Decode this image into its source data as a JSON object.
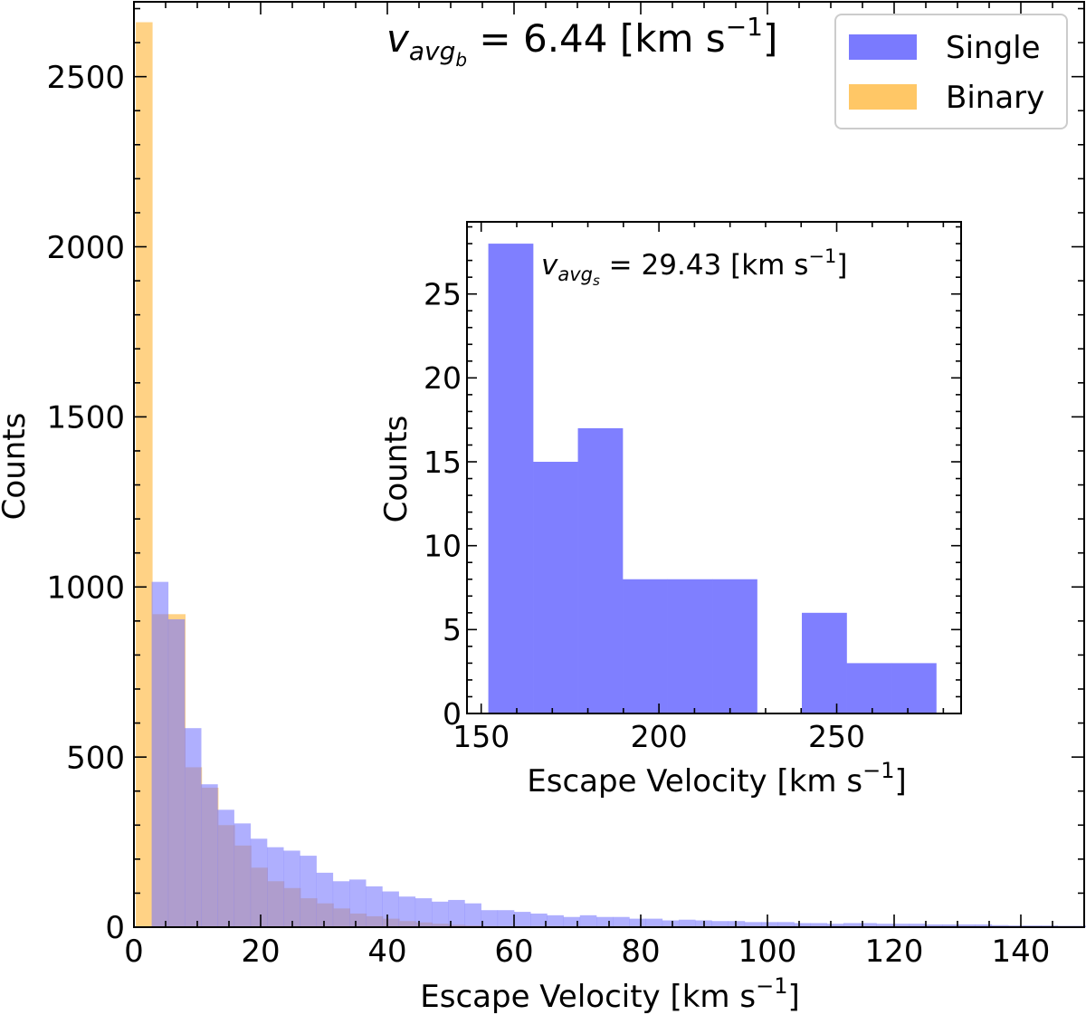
{
  "chart_data": [
    {
      "type": "bar",
      "role": "main",
      "xlabel_main": "Escape Velocity [km s",
      "xlabel_sup": "−1",
      "xlabel_tail": "]",
      "ylabel": "Counts",
      "xlim": [
        0,
        150
      ],
      "ylim": [
        0,
        2720
      ],
      "xticks": [
        0,
        20,
        40,
        60,
        80,
        100,
        120,
        140
      ],
      "yticks": [
        0,
        500,
        1000,
        1500,
        2000,
        2500
      ],
      "annotation": {
        "var": "v",
        "sub": "avg",
        "subsub": "b",
        "text": " = 6.44 [km s",
        "sup": "−1",
        "tail": "]"
      },
      "legend": {
        "position": "top-right",
        "entries": [
          "Single",
          "Binary"
        ]
      },
      "series": [
        {
          "name": "Single",
          "color": "#7a7afe",
          "bin_start": 2.8,
          "bin_width": 2.6,
          "values": [
            1015,
            905,
            585,
            420,
            345,
            305,
            260,
            235,
            225,
            210,
            160,
            135,
            140,
            120,
            105,
            90,
            85,
            75,
            80,
            70,
            50,
            50,
            45,
            40,
            35,
            30,
            35,
            30,
            30,
            25,
            25,
            20,
            22,
            20,
            18,
            18,
            15,
            15,
            15,
            12,
            12,
            10,
            12,
            12,
            10,
            10,
            10,
            8,
            8,
            8,
            8,
            6,
            5,
            5,
            5,
            4,
            4
          ]
        },
        {
          "name": "Binary",
          "color": "#ffc766",
          "bin_start": 0.3,
          "bin_width": 2.6,
          "values": [
            2660,
            920,
            920,
            470,
            410,
            300,
            240,
            175,
            135,
            115,
            85,
            70,
            55,
            40,
            32,
            25,
            18,
            14,
            10,
            7,
            5,
            3
          ]
        }
      ]
    },
    {
      "type": "bar",
      "role": "inset",
      "xlabel_main": "Escape Velocity [km s",
      "xlabel_sup": "−1",
      "xlabel_tail": "]",
      "ylabel": "Counts",
      "xlim": [
        146,
        285
      ],
      "ylim": [
        0,
        29.3
      ],
      "xticks": [
        150,
        200,
        250
      ],
      "yticks": [
        0,
        5,
        10,
        15,
        20,
        25
      ],
      "annotation": {
        "var": "v",
        "sub": "avg",
        "subsub": "s",
        "text": " = 29.43 [km s",
        "sup": "−1",
        "tail": "]"
      },
      "series": [
        {
          "name": "Single",
          "color": "#7f7fff",
          "bin_start": 152,
          "bin_width": 12.6,
          "values": [
            28,
            15,
            17,
            8,
            8,
            8,
            0,
            6,
            3,
            3
          ]
        }
      ]
    }
  ]
}
